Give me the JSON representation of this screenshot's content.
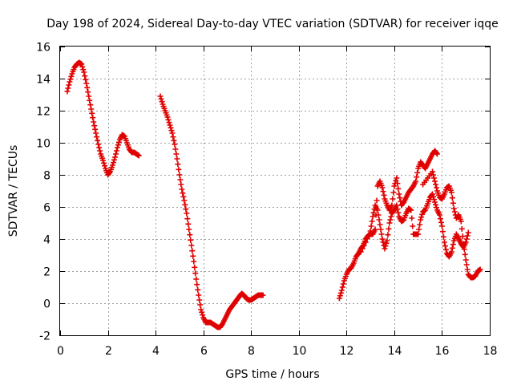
{
  "chart_data": {
    "type": "scatter",
    "title": "Day 198 of 2024, Sidereal Day-to-day VTEC variation (SDTVAR) for receiver iqqe",
    "xlabel": "GPS time / hours",
    "ylabel": "SDTVAR / TECUs",
    "xlim": [
      0,
      18
    ],
    "ylim": [
      -2,
      16
    ],
    "xticks": [
      "0",
      "2",
      "4",
      "6",
      "8",
      "10",
      "12",
      "14",
      "16",
      "18"
    ],
    "yticks": [
      "-2",
      "0",
      "2",
      "4",
      "6",
      "8",
      "10",
      "12",
      "14",
      "16"
    ],
    "grid": true,
    "marker": "+",
    "series": [
      {
        "name": "SDTVAR",
        "color": "#e00000",
        "segments": [
          [
            [
              0.3,
              13.2
            ],
            [
              0.4,
              13.8
            ],
            [
              0.5,
              14.3
            ],
            [
              0.6,
              14.7
            ],
            [
              0.7,
              14.9
            ],
            [
              0.8,
              15.0
            ],
            [
              0.9,
              14.9
            ],
            [
              1.0,
              14.4
            ],
            [
              1.1,
              13.7
            ],
            [
              1.2,
              12.9
            ],
            [
              1.3,
              12.1
            ],
            [
              1.4,
              11.3
            ],
            [
              1.5,
              10.6
            ],
            [
              1.6,
              9.9
            ],
            [
              1.7,
              9.3
            ],
            [
              1.8,
              8.9
            ],
            [
              1.9,
              8.4
            ],
            [
              2.0,
              8.0
            ],
            [
              2.1,
              8.2
            ],
            [
              2.2,
              8.6
            ],
            [
              2.3,
              9.1
            ],
            [
              2.4,
              9.7
            ],
            [
              2.5,
              10.2
            ],
            [
              2.6,
              10.5
            ],
            [
              2.7,
              10.4
            ],
            [
              2.8,
              10.0
            ],
            [
              2.9,
              9.6
            ],
            [
              3.0,
              9.4
            ],
            [
              3.1,
              9.4
            ],
            [
              3.2,
              9.3
            ],
            [
              3.3,
              9.2
            ]
          ],
          [
            [
              4.2,
              12.9
            ],
            [
              4.3,
              12.4
            ],
            [
              4.4,
              12.0
            ],
            [
              4.5,
              11.6
            ],
            [
              4.6,
              11.1
            ],
            [
              4.7,
              10.6
            ],
            [
              4.8,
              9.9
            ],
            [
              4.9,
              9.0
            ],
            [
              5.0,
              8.0
            ],
            [
              5.1,
              7.1
            ],
            [
              5.2,
              6.4
            ],
            [
              5.3,
              5.6
            ],
            [
              5.4,
              4.6
            ],
            [
              5.5,
              3.6
            ],
            [
              5.6,
              2.6
            ],
            [
              5.7,
              1.5
            ],
            [
              5.8,
              0.5
            ],
            [
              5.9,
              -0.4
            ],
            [
              6.0,
              -0.9
            ],
            [
              6.1,
              -1.2
            ],
            [
              6.2,
              -1.2
            ],
            [
              6.3,
              -1.2
            ],
            [
              6.4,
              -1.3
            ],
            [
              6.5,
              -1.4
            ],
            [
              6.6,
              -1.5
            ],
            [
              6.7,
              -1.5
            ],
            [
              6.8,
              -1.3
            ],
            [
              6.9,
              -1.0
            ],
            [
              7.0,
              -0.7
            ],
            [
              7.1,
              -0.4
            ],
            [
              7.2,
              -0.2
            ],
            [
              7.3,
              0.0
            ],
            [
              7.4,
              0.2
            ],
            [
              7.5,
              0.4
            ],
            [
              7.6,
              0.6
            ],
            [
              7.7,
              0.5
            ],
            [
              7.8,
              0.3
            ],
            [
              7.9,
              0.2
            ],
            [
              8.0,
              0.2
            ],
            [
              8.1,
              0.3
            ],
            [
              8.2,
              0.4
            ],
            [
              8.3,
              0.5
            ],
            [
              8.4,
              0.5
            ],
            [
              8.5,
              0.5
            ]
          ],
          [
            [
              11.7,
              0.3
            ],
            [
              11.8,
              0.8
            ],
            [
              11.9,
              1.4
            ],
            [
              12.0,
              1.8
            ],
            [
              12.1,
              2.1
            ],
            [
              12.2,
              2.2
            ],
            [
              12.3,
              2.5
            ],
            [
              12.4,
              2.9
            ],
            [
              12.5,
              3.1
            ],
            [
              12.6,
              3.4
            ],
            [
              12.7,
              3.6
            ],
            [
              12.8,
              4.0
            ],
            [
              12.9,
              4.2
            ],
            [
              13.0,
              4.3
            ],
            [
              13.1,
              4.3
            ],
            [
              13.2,
              4.6
            ],
            [
              13.3,
              7.3
            ],
            [
              13.4,
              7.6
            ],
            [
              13.5,
              7.2
            ],
            [
              13.6,
              6.5
            ],
            [
              13.7,
              6.1
            ],
            [
              13.8,
              5.8
            ],
            [
              13.9,
              6.1
            ],
            [
              14.0,
              7.3
            ],
            [
              14.1,
              7.8
            ],
            [
              14.2,
              6.8
            ],
            [
              14.3,
              6.1
            ],
            [
              14.4,
              6.3
            ],
            [
              14.5,
              6.6
            ],
            [
              14.6,
              6.9
            ],
            [
              14.7,
              7.1
            ],
            [
              14.8,
              7.3
            ],
            [
              14.9,
              7.6
            ],
            [
              15.0,
              8.4
            ],
            [
              15.1,
              8.8
            ],
            [
              15.2,
              8.6
            ],
            [
              15.3,
              8.4
            ],
            [
              15.4,
              8.7
            ],
            [
              15.5,
              9.0
            ],
            [
              15.6,
              9.3
            ],
            [
              15.7,
              9.5
            ],
            [
              15.8,
              9.3
            ]
          ],
          [
            [
              12.6,
              3.2
            ],
            [
              12.8,
              3.8
            ],
            [
              13.0,
              4.5
            ],
            [
              13.1,
              5.4
            ],
            [
              13.2,
              6.1
            ],
            [
              13.3,
              5.8
            ],
            [
              13.4,
              4.9
            ],
            [
              13.5,
              4.0
            ],
            [
              13.6,
              3.4
            ],
            [
              13.7,
              3.9
            ],
            [
              13.8,
              5.0
            ],
            [
              13.9,
              5.6
            ],
            [
              14.0,
              5.8
            ],
            [
              14.1,
              6.1
            ],
            [
              14.2,
              5.4
            ],
            [
              14.3,
              5.1
            ],
            [
              14.4,
              5.2
            ],
            [
              14.5,
              5.6
            ],
            [
              14.6,
              5.9
            ],
            [
              14.7,
              5.8
            ],
            [
              14.8,
              4.3
            ],
            [
              14.9,
              4.3
            ],
            [
              15.0,
              4.3
            ],
            [
              15.1,
              5.2
            ],
            [
              15.2,
              5.7
            ],
            [
              15.3,
              5.8
            ],
            [
              15.4,
              6.2
            ],
            [
              15.5,
              6.6
            ],
            [
              15.6,
              6.8
            ],
            [
              15.7,
              6.3
            ],
            [
              15.8,
              5.8
            ],
            [
              15.9,
              5.5
            ],
            [
              16.0,
              4.8
            ],
            [
              16.1,
              3.8
            ],
            [
              16.2,
              3.1
            ],
            [
              16.3,
              2.9
            ],
            [
              16.4,
              3.2
            ],
            [
              16.5,
              3.9
            ],
            [
              16.6,
              4.3
            ],
            [
              16.7,
              4.0
            ],
            [
              16.8,
              3.7
            ],
            [
              16.9,
              3.5
            ],
            [
              17.0,
              3.8
            ],
            [
              17.1,
              4.4
            ]
          ],
          [
            [
              15.2,
              7.4
            ],
            [
              15.4,
              7.8
            ],
            [
              15.6,
              8.2
            ],
            [
              15.7,
              7.6
            ],
            [
              15.8,
              7.0
            ],
            [
              15.9,
              6.6
            ],
            [
              16.0,
              6.5
            ],
            [
              16.1,
              6.8
            ],
            [
              16.2,
              7.2
            ],
            [
              16.3,
              7.3
            ],
            [
              16.4,
              6.9
            ],
            [
              16.5,
              5.9
            ],
            [
              16.6,
              5.3
            ],
            [
              16.7,
              5.5
            ],
            [
              16.8,
              5.1
            ],
            [
              16.9,
              3.7
            ],
            [
              17.0,
              2.7
            ],
            [
              17.1,
              1.8
            ],
            [
              17.2,
              1.6
            ],
            [
              17.3,
              1.6
            ],
            [
              17.4,
              1.7
            ],
            [
              17.5,
              2.0
            ],
            [
              17.6,
              2.1
            ]
          ]
        ]
      }
    ]
  }
}
